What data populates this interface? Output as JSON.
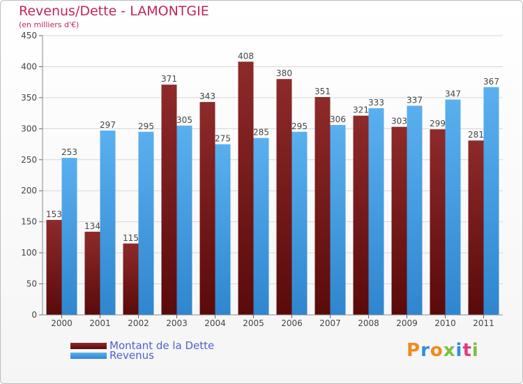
{
  "title": "Revenus/Dette - LAMONTGIE",
  "subtitle": "(en milliers d'€)",
  "logo_text": "Proxiti",
  "colors": {
    "dette": "#7a1e1e",
    "revenus": "#4aa3e6",
    "title": "#c0255a",
    "legend_text": "#5060d0"
  },
  "chart_data": {
    "type": "bar",
    "categories": [
      "2000",
      "2001",
      "2002",
      "2003",
      "2004",
      "2005",
      "2006",
      "2007",
      "2008",
      "2009",
      "2010",
      "2011"
    ],
    "series": [
      {
        "name": "Montant de la Dette",
        "values": [
          153,
          134,
          115,
          371,
          343,
          408,
          380,
          351,
          321,
          303,
          299,
          281
        ]
      },
      {
        "name": "Revenus",
        "values": [
          253,
          297,
          295,
          305,
          275,
          285,
          295,
          306,
          333,
          337,
          347,
          367
        ]
      }
    ],
    "ylim": [
      0,
      450
    ],
    "yticks": [
      0,
      50,
      100,
      150,
      200,
      250,
      300,
      350,
      400,
      450
    ],
    "grid": true,
    "legend": "bottom-left"
  }
}
